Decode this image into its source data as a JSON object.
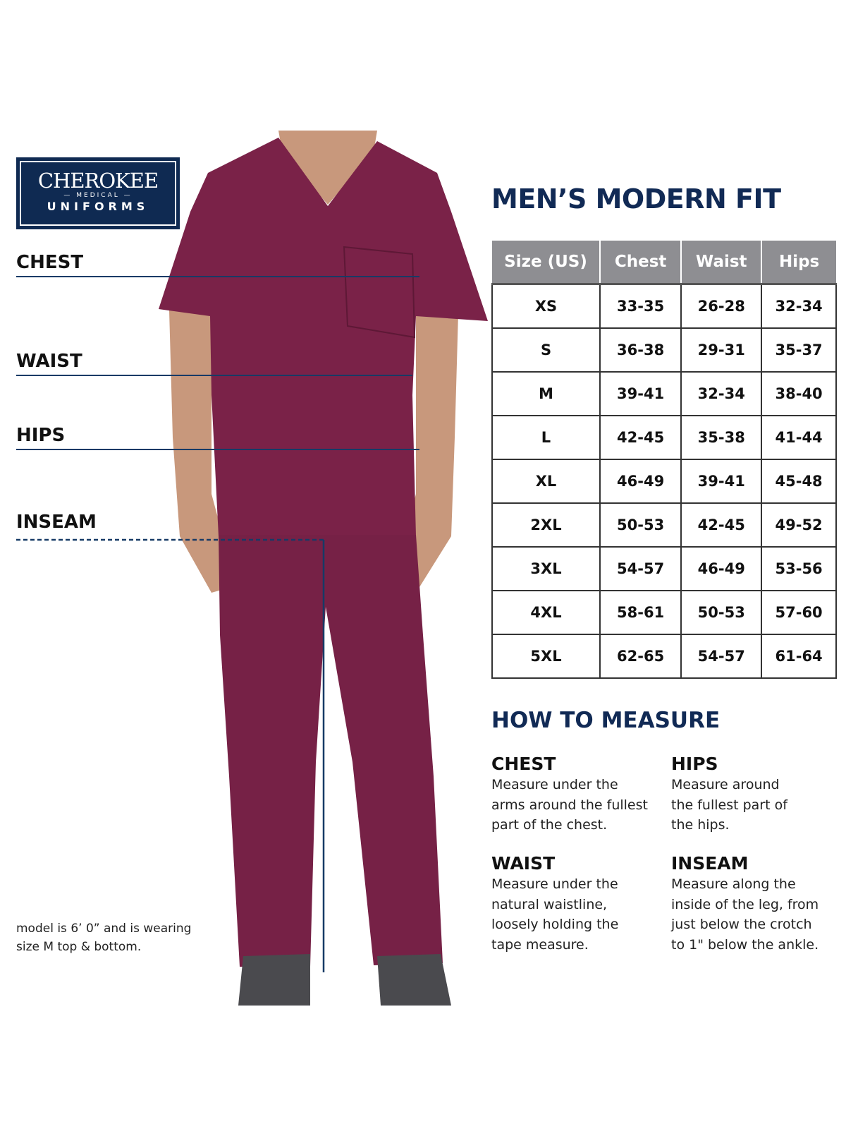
{
  "brand": {
    "logo_main": "CHEROKEE",
    "logo_sub": "MEDICAL",
    "logo_bottom": "UNIFORMS"
  },
  "colors": {
    "navy": "#112a55",
    "garment": "#7a2248",
    "header_gray": "#8e8e92"
  },
  "measure_labels": [
    "CHEST",
    "WAIST",
    "HIPS",
    "INSEAM"
  ],
  "model_note": [
    "model is 6’ 0” and is wearing",
    "size M top & bottom."
  ],
  "title": "MEN’S MODERN FIT",
  "table": {
    "headers": [
      "Size (US)",
      "Chest",
      "Waist",
      "Hips"
    ],
    "rows": [
      [
        "XS",
        "33-35",
        "26-28",
        "32-34"
      ],
      [
        "S",
        "36-38",
        "29-31",
        "35-37"
      ],
      [
        "M",
        "39-41",
        "32-34",
        "38-40"
      ],
      [
        "L",
        "42-45",
        "35-38",
        "41-44"
      ],
      [
        "XL",
        "46-49",
        "39-41",
        "45-48"
      ],
      [
        "2XL",
        "50-53",
        "42-45",
        "49-52"
      ],
      [
        "3XL",
        "54-57",
        "46-49",
        "53-56"
      ],
      [
        "4XL",
        "58-61",
        "50-53",
        "57-60"
      ],
      [
        "5XL",
        "62-65",
        "54-57",
        "61-64"
      ]
    ]
  },
  "how_to": {
    "title": "HOW TO MEASURE",
    "sections": [
      {
        "title": "CHEST",
        "lines": [
          "Measure under the",
          "arms around the fullest",
          "part of the chest."
        ]
      },
      {
        "title": "HIPS",
        "lines": [
          "Measure around",
          "the fullest part of",
          "the hips."
        ]
      },
      {
        "title": "WAIST",
        "lines": [
          "Measure under the",
          "natural waistline,",
          "loosely holding the",
          "tape measure."
        ]
      },
      {
        "title": "INSEAM",
        "lines": [
          "Measure along the",
          "inside of the leg, from",
          "just below the crotch",
          "to 1\" below the ankle."
        ]
      }
    ]
  }
}
